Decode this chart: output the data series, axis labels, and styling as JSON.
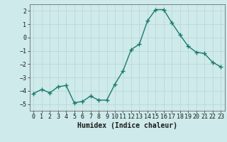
{
  "x": [
    0,
    1,
    2,
    3,
    4,
    5,
    6,
    7,
    8,
    9,
    10,
    11,
    12,
    13,
    14,
    15,
    16,
    17,
    18,
    19,
    20,
    21,
    22,
    23
  ],
  "y": [
    -4.2,
    -3.9,
    -4.15,
    -3.7,
    -3.6,
    -4.9,
    -4.8,
    -4.4,
    -4.7,
    -4.7,
    -3.5,
    -2.5,
    -0.9,
    -0.5,
    1.25,
    2.1,
    2.1,
    1.1,
    0.2,
    -0.65,
    -1.1,
    -1.2,
    -1.85,
    -2.2
  ],
  "line_color": "#1a7a6e",
  "marker": "+",
  "marker_size": 4,
  "linewidth": 1.0,
  "background_color": "#ceeaea",
  "grid_color": "#b8d4d4",
  "xlabel": "Humidex (Indice chaleur)",
  "xlabel_fontsize": 7,
  "tick_fontsize": 6,
  "ylim": [
    -5.5,
    2.5
  ],
  "xlim": [
    -0.5,
    23.5
  ],
  "yticks": [
    -5,
    -4,
    -3,
    -2,
    -1,
    0,
    1,
    2
  ],
  "xticks": [
    0,
    1,
    2,
    3,
    4,
    5,
    6,
    7,
    8,
    9,
    10,
    11,
    12,
    13,
    14,
    15,
    16,
    17,
    18,
    19,
    20,
    21,
    22,
    23
  ]
}
